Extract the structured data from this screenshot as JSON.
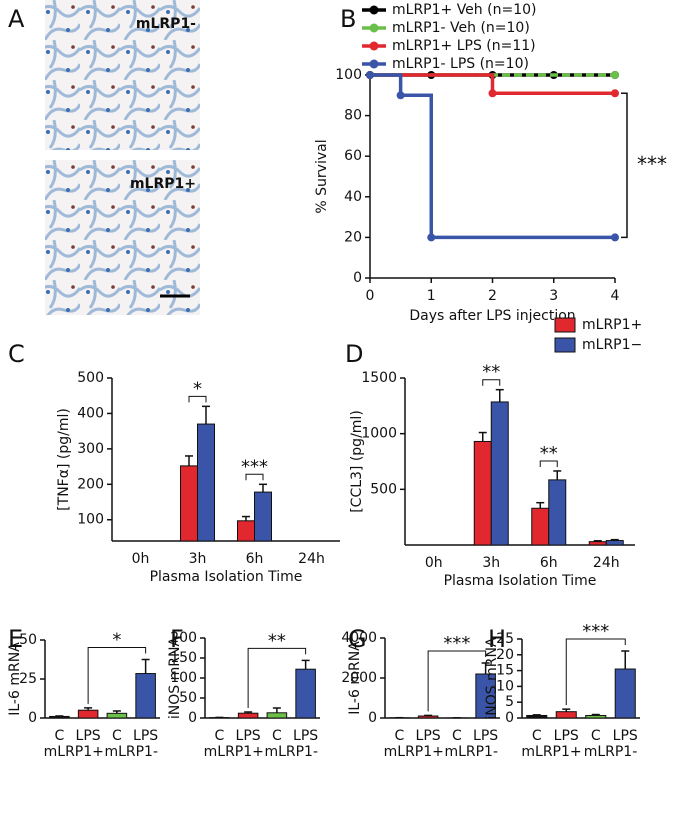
{
  "images": {
    "panel": "A",
    "labels": [
      "mLRP1-",
      "mLRP1+"
    ]
  },
  "chart_data": [
    {
      "panel": "B",
      "type": "line",
      "ylabel": "% Survival",
      "xlabel": "Days after LPS injection",
      "xlim": [
        0,
        4
      ],
      "xticks": [
        0,
        1,
        2,
        3,
        4
      ],
      "ylim": [
        0,
        100
      ],
      "yticks": [
        0,
        20,
        40,
        60,
        80,
        100
      ],
      "series": [
        {
          "name": "mLRP1+ Veh (n=10)",
          "color": "#000000",
          "x": [
            0,
            1,
            2,
            3,
            4
          ],
          "values": [
            100,
            100,
            100,
            100,
            100
          ]
        },
        {
          "name": "mLRP1- Veh (n=10)",
          "color": "#6cc04a",
          "x": [
            0,
            4
          ],
          "values": [
            100,
            100
          ]
        },
        {
          "name": "mLRP1+ LPS (n=11)",
          "color": "#e0282e",
          "x": [
            0,
            2,
            4
          ],
          "values": [
            100,
            91,
            91
          ]
        },
        {
          "name": "mLRP1- LPS (n=10)",
          "color": "#3a55a8",
          "x": [
            0,
            0.5,
            1,
            4
          ],
          "values": [
            100,
            90,
            20,
            20
          ]
        }
      ],
      "annotations": [
        "***"
      ]
    },
    {
      "panel": "C",
      "type": "bar",
      "ylabel": "[TNFα] (pg/ml)",
      "xlabel": "Plasma Isolation Time",
      "categories": [
        "0h",
        "3h",
        "6h",
        "24h"
      ],
      "ylim": [
        40,
        500
      ],
      "yticks": [
        100,
        200,
        300,
        400,
        500
      ],
      "series": [
        {
          "color": "#e0282e",
          "values": [
            null,
            252,
            97,
            null
          ],
          "errors": [
            null,
            28,
            12,
            null
          ]
        },
        {
          "color": "#3a55a8",
          "values": [
            null,
            370,
            178,
            null
          ],
          "errors": [
            null,
            50,
            22,
            null
          ]
        }
      ],
      "annotations": [
        "*",
        "***"
      ]
    },
    {
      "panel": "D",
      "type": "bar",
      "ylabel": "[CCL3] (pg/ml)",
      "xlabel": "Plasma Isolation Time",
      "categories": [
        "0h",
        "3h",
        "6h",
        "24h"
      ],
      "ylim": [
        0,
        1500
      ],
      "yticks": [
        500,
        1000,
        1500
      ],
      "series": [
        {
          "name": "mLRP1+",
          "color": "#e0282e",
          "values": [
            null,
            930,
            330,
            30
          ],
          "errors": [
            null,
            80,
            50,
            8
          ]
        },
        {
          "name": "mLRP1−",
          "color": "#3a55a8",
          "values": [
            null,
            1285,
            585,
            40
          ],
          "errors": [
            null,
            110,
            80,
            8
          ]
        }
      ],
      "annotations": [
        "**",
        "**"
      ]
    },
    {
      "panel": "E",
      "type": "bar",
      "ylabel": "IL-6 mRNA",
      "categories": [
        "C",
        "LPS",
        "C",
        "LPS"
      ],
      "groups": [
        "mLRP1+",
        "mLRP1-"
      ],
      "ylim": [
        0,
        50
      ],
      "yticks": [
        0,
        25,
        50
      ],
      "series": [
        {
          "colors": [
            "#111111",
            "#e0282e",
            "#6cc04a",
            "#3a55a8"
          ],
          "values": [
            1,
            5,
            3,
            28.5
          ],
          "errors": [
            0.3,
            1.5,
            1.5,
            9
          ]
        }
      ],
      "annotations": [
        "*"
      ]
    },
    {
      "panel": "F",
      "type": "bar",
      "ylabel": "iNOS mRNA",
      "categories": [
        "C",
        "LPS",
        "C",
        "LPS"
      ],
      "groups": [
        "mLRP1+",
        "mLRP1-"
      ],
      "ylim": [
        0,
        200
      ],
      "yticks": [
        0,
        50,
        100,
        150,
        200
      ],
      "series": [
        {
          "colors": [
            "#111111",
            "#e0282e",
            "#6cc04a",
            "#3a55a8"
          ],
          "values": [
            1,
            12,
            13,
            122
          ],
          "errors": [
            0.5,
            3,
            12,
            22
          ]
        }
      ],
      "annotations": [
        "**"
      ]
    },
    {
      "panel": "G",
      "type": "bar",
      "ylabel": "IL-6 mRNA",
      "categories": [
        "C",
        "LPS",
        "C",
        "LPS"
      ],
      "groups": [
        "mLRP1+",
        "mLRP1-"
      ],
      "ylim": [
        0,
        4000
      ],
      "yticks": [
        0,
        2000,
        4000
      ],
      "series": [
        {
          "colors": [
            "#111111",
            "#e0282e",
            "#6cc04a",
            "#3a55a8"
          ],
          "values": [
            10,
            100,
            5,
            2200
          ],
          "errors": [
            5,
            30,
            3,
            550
          ]
        }
      ],
      "annotations": [
        "***"
      ]
    },
    {
      "panel": "H",
      "type": "bar",
      "ylabel": "iNOS mRNA",
      "categories": [
        "C",
        "LPS",
        "C",
        "LPS"
      ],
      "groups": [
        "mLRP1+",
        "mLRP1-"
      ],
      "ylim": [
        0,
        25
      ],
      "yticks": [
        0,
        5,
        10,
        15,
        20,
        25
      ],
      "series": [
        {
          "colors": [
            "#111111",
            "#e0282e",
            "#6cc04a",
            "#3a55a8"
          ],
          "values": [
            0.8,
            2,
            0.8,
            15.5
          ],
          "errors": [
            0.2,
            0.8,
            0.3,
            5.7
          ]
        }
      ],
      "annotations": [
        "***"
      ]
    }
  ]
}
